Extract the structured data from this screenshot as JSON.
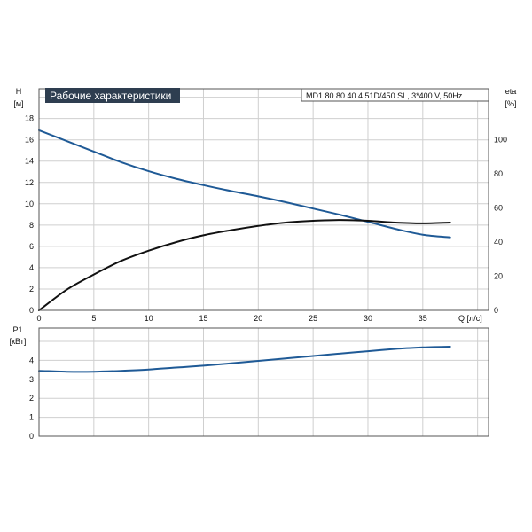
{
  "title": "Рабочие характеристики",
  "model": "MD1.80.80.40.4.51D/450.SL, 3*400 V, 50Hz",
  "colors": {
    "head": "#1f5a96",
    "eta": "#111111",
    "power": "#1f5a96",
    "title_bg": "#2e3e50"
  },
  "chart_data": [
    {
      "type": "line",
      "xlabel": "Q [л/с]",
      "xlim": [
        0,
        41
      ],
      "xticks": [
        0,
        5,
        10,
        15,
        20,
        25,
        30,
        35
      ],
      "ylabel": "H",
      "yunit": "[м]",
      "ylim": [
        0,
        20.8
      ],
      "yticks": [
        0,
        2,
        4,
        6,
        8,
        10,
        12,
        14,
        16,
        18
      ],
      "y2label": "eta",
      "y2unit": "[%]",
      "y2lim": [
        0,
        130
      ],
      "y2ticks": [
        0,
        20,
        40,
        60,
        80,
        100
      ],
      "grid": true,
      "series": [
        {
          "key": "H",
          "axis": "left",
          "x": [
            0,
            2.5,
            5,
            7.5,
            10,
            12.5,
            15,
            17.5,
            20,
            22.5,
            25,
            27.5,
            30,
            32.5,
            35,
            37.5
          ],
          "y": [
            16.9,
            15.9,
            14.9,
            13.9,
            13.05,
            12.35,
            11.75,
            11.2,
            10.7,
            10.15,
            9.55,
            8.95,
            8.3,
            7.65,
            7.1,
            6.85
          ]
        },
        {
          "key": "eta",
          "axis": "right",
          "x": [
            0,
            2.5,
            5,
            7.5,
            10,
            12.5,
            15,
            17.5,
            20,
            22.5,
            25,
            27.5,
            30,
            32.5,
            35,
            37.5
          ],
          "y": [
            0,
            12,
            21,
            29,
            35,
            40,
            44,
            47,
            49.5,
            51.5,
            52.5,
            53,
            52.5,
            51.5,
            51,
            51.5
          ]
        }
      ]
    },
    {
      "type": "line",
      "xlim": [
        0,
        41
      ],
      "xticks": [
        0,
        5,
        10,
        15,
        20,
        25,
        30,
        35
      ],
      "ylabel": "P1",
      "yunit": "[кВт]",
      "ylim": [
        0,
        5.7
      ],
      "yticks": [
        0,
        1,
        2,
        3,
        4
      ],
      "grid": true,
      "series": [
        {
          "key": "P1",
          "axis": "left",
          "x": [
            0,
            2.5,
            5,
            7.5,
            10,
            12.5,
            15,
            17.5,
            20,
            22.5,
            25,
            27.5,
            30,
            32.5,
            35,
            37.5
          ],
          "y": [
            3.45,
            3.4,
            3.4,
            3.45,
            3.52,
            3.62,
            3.72,
            3.84,
            3.97,
            4.1,
            4.23,
            4.36,
            4.48,
            4.6,
            4.68,
            4.72
          ]
        }
      ]
    }
  ]
}
